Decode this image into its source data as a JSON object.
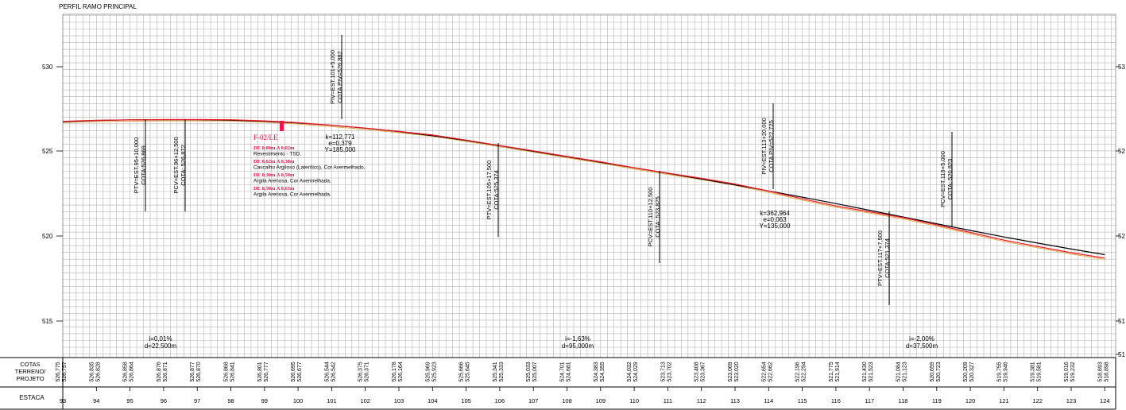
{
  "title": "PERFIL RAMO PRINCIPAL",
  "elevation_axis": {
    "labels_left": [
      "530",
      "525",
      "520",
      "515"
    ],
    "labels_right": [
      "53",
      "52",
      "52",
      "51",
      "51"
    ]
  },
  "table": {
    "cotas_label_lines": [
      "COTAS",
      "TERRENO/",
      "PROJETO"
    ],
    "estaca_label": "ESTACA",
    "stations": [
      {
        "estaca": "93",
        "terreno": "526,775",
        "projeto": "526,757"
      },
      {
        "estaca": "94",
        "terreno": "526,835",
        "projeto": "526,828"
      },
      {
        "estaca": "95",
        "terreno": "526,858",
        "projeto": "526,864"
      },
      {
        "estaca": "96",
        "terreno": "526,876",
        "projeto": "526,871"
      },
      {
        "estaca": "97",
        "terreno": "526,877",
        "projeto": "526,870"
      },
      {
        "estaca": "98",
        "terreno": "526,868",
        "projeto": "526,841"
      },
      {
        "estaca": "99",
        "terreno": "526,801",
        "projeto": "526,777"
      },
      {
        "estaca": "100",
        "terreno": "526,695",
        "projeto": "526,677"
      },
      {
        "estaca": "101",
        "terreno": "526,544",
        "projeto": "526,542"
      },
      {
        "estaca": "102",
        "terreno": "526,375",
        "projeto": "526,371"
      },
      {
        "estaca": "103",
        "terreno": "526,178",
        "projeto": "526,164"
      },
      {
        "estaca": "104",
        "terreno": "525,969",
        "projeto": "525,923"
      },
      {
        "estaca": "105",
        "terreno": "525,666",
        "projeto": "525,645"
      },
      {
        "estaca": "106",
        "terreno": "525,341",
        "projeto": "525,333"
      },
      {
        "estaca": "107",
        "terreno": "525,033",
        "projeto": "525,007"
      },
      {
        "estaca": "108",
        "terreno": "524,701",
        "projeto": "524,681"
      },
      {
        "estaca": "109",
        "terreno": "524,383",
        "projeto": "524,355"
      },
      {
        "estaca": "110",
        "terreno": "524,032",
        "projeto": "524,029"
      },
      {
        "estaca": "111",
        "terreno": "523,713",
        "projeto": "523,702"
      },
      {
        "estaca": "112",
        "terreno": "523,408",
        "projeto": "523,367"
      },
      {
        "estaca": "113",
        "terreno": "523,069",
        "projeto": "523,020"
      },
      {
        "estaca": "114",
        "terreno": "522,654",
        "projeto": "522,662"
      },
      {
        "estaca": "115",
        "terreno": "522,196",
        "projeto": "522,294"
      },
      {
        "estaca": "116",
        "terreno": "521,775",
        "projeto": "521,914"
      },
      {
        "estaca": "117",
        "terreno": "521,430",
        "projeto": "521,523"
      },
      {
        "estaca": "118",
        "terreno": "521,084",
        "projeto": "521,123"
      },
      {
        "estaca": "119",
        "terreno": "520,659",
        "projeto": "520,723"
      },
      {
        "estaca": "120",
        "terreno": "520,209",
        "projeto": "520,327"
      },
      {
        "estaca": "121",
        "terreno": "519,755",
        "projeto": "519,946"
      },
      {
        "estaca": "122",
        "terreno": "519,381",
        "projeto": "519,581"
      },
      {
        "estaca": "123",
        "terreno": "519,016",
        "projeto": "519,232"
      },
      {
        "estaca": "124",
        "terreno": "518,693",
        "projeto": "518,898"
      }
    ]
  },
  "vertical_points": [
    {
      "line1": "PTV=EST.95+10,000",
      "line2": "COTA:526,869"
    },
    {
      "line1": "PCV=EST.96+12,500",
      "line2": "COTA: 526,872"
    },
    {
      "line1": "PIV=EST.101+5,000",
      "line2": "COTA PIV=526,882"
    },
    {
      "line1": "PTV=EST.105+17,500",
      "line2": "COTA:525,374"
    },
    {
      "line1": "PCV=EST.110+12,500",
      "line2": "COTA: 523,825"
    },
    {
      "line1": "PIV=EST.113+20,000",
      "line2": "COTA PIV=522,725"
    },
    {
      "line1": "PTV=EST.117+7,500",
      "line2": "COTA:521,374"
    },
    {
      "line1": "PCV=EST.119+5,000",
      "line2": "COTA: 520,823"
    }
  ],
  "curves": [
    {
      "k": "k=112,771",
      "e": "e=0,379",
      "y": "Y=185,000"
    },
    {
      "k": "k=362,964",
      "e": "e=0,063",
      "y": "Y=135,000"
    }
  ],
  "grades": [
    {
      "i": "i=0,01%",
      "d": "d=22,500m"
    },
    {
      "i": "i=-1,63%",
      "d": "d=95,000m"
    },
    {
      "i": "i=-2,00%",
      "d": "d=37,500m"
    }
  ],
  "soil_sample": {
    "title": "F-02/LE",
    "layers": [
      {
        "range": "DE 0,00m A 0,02m",
        "desc": "Revestimento - TSD."
      },
      {
        "range": "DE 0,02m A 0,30m",
        "desc": "Cascalho Argiloso (Laterítico), Cor Avermelhado."
      },
      {
        "range": "DE 0,30m A 0,50m",
        "desc": "Argila Arenosa, Cor Avermelhada."
      },
      {
        "range": "DE 0,50m A 0,65m",
        "desc": "Argila Arenosa, Cor Avermelhada."
      }
    ]
  },
  "colors": {
    "grid": "#b4b4b4",
    "terrain": "#e8192c",
    "project": "#000000",
    "offset": "#e8a040",
    "soil": "#e8194a"
  }
}
